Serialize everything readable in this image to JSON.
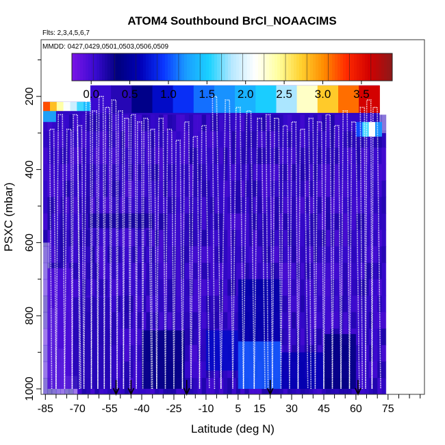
{
  "chart_data": {
    "type": "heatmap",
    "title": "ATOM4 Southbound BrCl_NOAACIMS",
    "flights_label": "Flts: 2,3,4,5,6,7",
    "dates_label": "MMDD: 0427,0429,0501,0503,0506,0509",
    "xlabel": "Latitude (deg N)",
    "ylabel": "PSXC (mbar)",
    "xlim": [
      -87,
      92
    ],
    "ylim": [
      1015,
      45
    ],
    "x_ticks": [
      -85,
      -70,
      -55,
      -40,
      -25,
      -10,
      5,
      15,
      30,
      45,
      60,
      75
    ],
    "y_ticks": [
      200,
      400,
      600,
      800,
      1000
    ],
    "colorbar": {
      "min": -0.25,
      "max": 3.9,
      "ticks": [
        0.0,
        0.5,
        1.0,
        1.5,
        2.0,
        2.5,
        3.0,
        3.5
      ],
      "tick_labels": [
        "0.0",
        "0.5",
        "1.0",
        "1.5",
        "2.0",
        "2.5",
        "3.0",
        "3.5"
      ],
      "colors": [
        "#7a14e6",
        "#3a0ad2",
        "#00007e",
        "#0000b8",
        "#0a36ff",
        "#1a9dff",
        "#1ad2ff",
        "#b8e8ff",
        "#ffffff",
        "#ffffa0",
        "#ffd230",
        "#ff8c00",
        "#ff2a00",
        "#d20000",
        "#8c1a1a"
      ]
    },
    "profile_markers_lat": [
      -52,
      -45,
      -19,
      20,
      61
    ],
    "background_value": 0.1,
    "regions": [
      {
        "lat": [
          -84,
          -72
        ],
        "p": [
          670,
          1000
        ],
        "value": -0.05
      },
      {
        "lat": [
          -72,
          -55
        ],
        "p": [
          750,
          1000
        ],
        "value": 0.15
      },
      {
        "lat": [
          -40,
          -20
        ],
        "p": [
          840,
          1000
        ],
        "value": 0.35
      },
      {
        "lat": [
          -10,
          5
        ],
        "p": [
          840,
          950
        ],
        "value": 0.7
      },
      {
        "lat": [
          5,
          25
        ],
        "p": [
          870,
          1000
        ],
        "value": 1.05
      },
      {
        "lat": [
          5,
          25
        ],
        "p": [
          700,
          870
        ],
        "value": 0.55
      },
      {
        "lat": [
          25,
          45
        ],
        "p": [
          900,
          1000
        ],
        "value": 0.6
      },
      {
        "lat": [
          45,
          60
        ],
        "p": [
          850,
          1000
        ],
        "value": 0.35
      },
      {
        "lat": [
          -86,
          -80
        ],
        "p": [
          230,
          270
        ],
        "value": 1.4
      },
      {
        "lat": [
          -65,
          -35
        ],
        "p": [
          520,
          560
        ],
        "value": 0.25
      }
    ],
    "top_band": {
      "lat": [
        -64,
        71
      ],
      "p": [
        170,
        245
      ],
      "values": [
        0.05,
        0.15,
        0.4,
        0.7,
        0.9,
        1.1,
        1.2,
        1.35,
        1.5,
        1.8,
        2.3,
        2.75,
        3.1,
        3.6
      ]
    },
    "left_top_band": {
      "lat": [
        -86,
        -64
      ],
      "p": [
        215,
        240
      ],
      "values": [
        3.2,
        2.8,
        2.4,
        2.1,
        1.9,
        1.6,
        1.4
      ]
    },
    "right_edge_band": {
      "lat": [
        60,
        72
      ],
      "p": [
        270,
        310
      ],
      "values": [
        1.0,
        1.6,
        2.1,
        1.2
      ]
    },
    "flight_profiles": [
      {
        "lat": [
          -82,
          -78,
          -74,
          -71
        ],
        "p_top": [
          290,
          250,
          290,
          250
        ]
      },
      {
        "lat": [
          -69,
          -65,
          -62,
          -59,
          -56,
          -53,
          -50,
          -47,
          -44,
          -41,
          -38
        ],
        "p_top": [
          280,
          210,
          240,
          200,
          230,
          210,
          240,
          260,
          250,
          270,
          260
        ]
      },
      {
        "lat": [
          -35,
          -31,
          -27,
          -23,
          -19,
          -15,
          -11
        ],
        "p_top": [
          290,
          260,
          290,
          320,
          270,
          310,
          280
        ]
      },
      {
        "lat": [
          -6,
          0,
          5,
          10,
          15
        ],
        "p_top": [
          200,
          210,
          230,
          240,
          260
        ]
      },
      {
        "lat": [
          19,
          23,
          27,
          31,
          35
        ],
        "p_top": [
          250,
          260,
          280,
          270,
          290
        ]
      },
      {
        "lat": [
          39,
          43,
          47,
          51,
          55,
          59
        ],
        "p_top": [
          260,
          270,
          250,
          280,
          240,
          270
        ]
      },
      {
        "lat": [
          63,
          66,
          69
        ],
        "p_top": [
          230,
          210,
          230
        ]
      }
    ]
  }
}
